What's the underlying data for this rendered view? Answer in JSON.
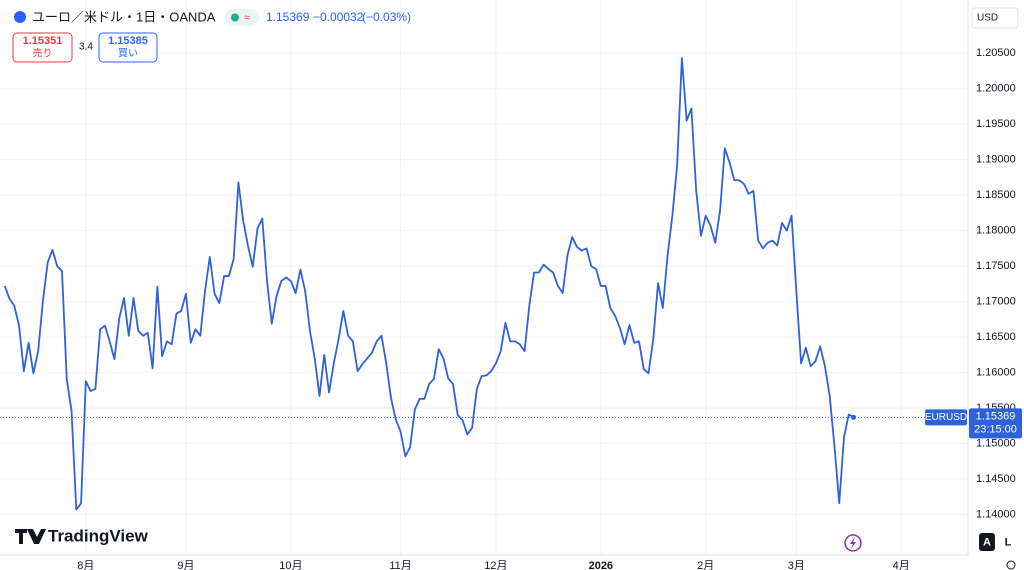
{
  "header": {
    "symbol_title": "ユーロ／米ドル・1日・OANDA",
    "price": 1.15369,
    "change": "−0.00032",
    "change_pct": "(−0.03%)"
  },
  "trade": {
    "sell_price": "1.15351",
    "sell_label": "売り",
    "spread": 3.4,
    "buy_price": "1.15385",
    "buy_label": "買い"
  },
  "currency": "USD",
  "chart_data": {
    "type": "line",
    "color": "#2f62d8",
    "grid": true,
    "values": [
      1.1722,
      1.1704,
      1.1694,
      1.1666,
      1.1602,
      1.1642,
      1.1599,
      1.163,
      1.1701,
      1.1755,
      1.1773,
      1.175,
      1.1743,
      1.1591,
      1.1546,
      1.1407,
      1.1416,
      1.1588,
      1.1574,
      1.1577,
      1.1661,
      1.1666,
      1.1644,
      1.1619,
      1.1676,
      1.1705,
      1.1652,
      1.1705,
      1.1659,
      1.1652,
      1.1656,
      1.1606,
      1.1721,
      1.1623,
      1.1644,
      1.164,
      1.1683,
      1.1687,
      1.1711,
      1.1642,
      1.1661,
      1.1652,
      1.1715,
      1.1763,
      1.1711,
      1.1698,
      1.1736,
      1.1736,
      1.176,
      1.1868,
      1.1814,
      1.1779,
      1.1749,
      1.1803,
      1.1817,
      1.1729,
      1.1669,
      1.1708,
      1.1729,
      1.1734,
      1.1729,
      1.1712,
      1.1745,
      1.1715,
      1.1659,
      1.162,
      1.1567,
      1.1625,
      1.1572,
      1.1613,
      1.1647,
      1.1687,
      1.1652,
      1.1644,
      1.1602,
      1.1612,
      1.162,
      1.1628,
      1.1644,
      1.1652,
      1.1613,
      1.1564,
      1.1534,
      1.1517,
      1.1482,
      1.1495,
      1.1548,
      1.1563,
      1.1563,
      1.1584,
      1.1591,
      1.1633,
      1.162,
      1.1592,
      1.1584,
      1.154,
      1.1533,
      1.1513,
      1.1522,
      1.1577,
      1.1595,
      1.1596,
      1.1602,
      1.1613,
      1.163,
      1.167,
      1.1644,
      1.1644,
      1.164,
      1.163,
      1.1694,
      1.1741,
      1.1741,
      1.1752,
      1.1746,
      1.1741,
      1.1722,
      1.1712,
      1.1765,
      1.1791,
      1.1777,
      1.1772,
      1.1775,
      1.175,
      1.1746,
      1.1722,
      1.1722,
      1.1691,
      1.168,
      1.1663,
      1.164,
      1.1667,
      1.1642,
      1.1644,
      1.1605,
      1.1599,
      1.1647,
      1.1726,
      1.1691,
      1.1765,
      1.1821,
      1.1892,
      1.2043,
      1.1955,
      1.1972,
      1.1856,
      1.1793,
      1.1821,
      1.1807,
      1.1783,
      1.1828,
      1.1916,
      1.1896,
      1.1871,
      1.1871,
      1.1866,
      1.1852,
      1.1856,
      1.1786,
      1.1775,
      1.1783,
      1.1786,
      1.1779,
      1.1811,
      1.18,
      1.1821,
      1.1715,
      1.1613,
      1.1635,
      1.1609,
      1.1616,
      1.1637,
      1.1609,
      1.1567,
      1.1496,
      1.1416,
      1.1509,
      1.1541,
      1.1537
    ],
    "xlim": [
      -1,
      202
    ],
    "xticks": [
      {
        "value": 17,
        "label": "8月"
      },
      {
        "value": 38,
        "label": "9月"
      },
      {
        "value": 60,
        "label": "10月"
      },
      {
        "value": 83,
        "label": "11月"
      },
      {
        "value": 103,
        "label": "12月"
      },
      {
        "value": 125,
        "label": "2026"
      },
      {
        "value": 147,
        "label": "2月"
      },
      {
        "value": 166,
        "label": "3月"
      },
      {
        "value": 188,
        "label": "4月"
      }
    ],
    "ylim": [
      1.1343,
      1.2125
    ],
    "yticks": [
      {
        "value": 1.14,
        "label": "1.14000"
      },
      {
        "value": 1.145,
        "label": "1.14500"
      },
      {
        "value": 1.15,
        "label": "1.15000"
      },
      {
        "value": 1.155,
        "label": "1.15500"
      },
      {
        "value": 1.16,
        "label": "1.16000"
      },
      {
        "value": 1.165,
        "label": "1.16500"
      },
      {
        "value": 1.17,
        "label": "1.17000"
      },
      {
        "value": 1.175,
        "label": "1.17500"
      },
      {
        "value": 1.18,
        "label": "1.18000"
      },
      {
        "value": 1.185,
        "label": "1.18500"
      },
      {
        "value": 1.19,
        "label": "1.19000"
      },
      {
        "value": 1.195,
        "label": "1.19500"
      },
      {
        "value": 1.2,
        "label": "1.20000"
      },
      {
        "value": 1.205,
        "label": "1.20500"
      }
    ],
    "last_price": 1.15369
  },
  "price_tag": {
    "symbol": "EURUSD",
    "countdown": "23:15:00"
  },
  "logo": "TradingView",
  "buttons": [
    "A",
    "L"
  ]
}
